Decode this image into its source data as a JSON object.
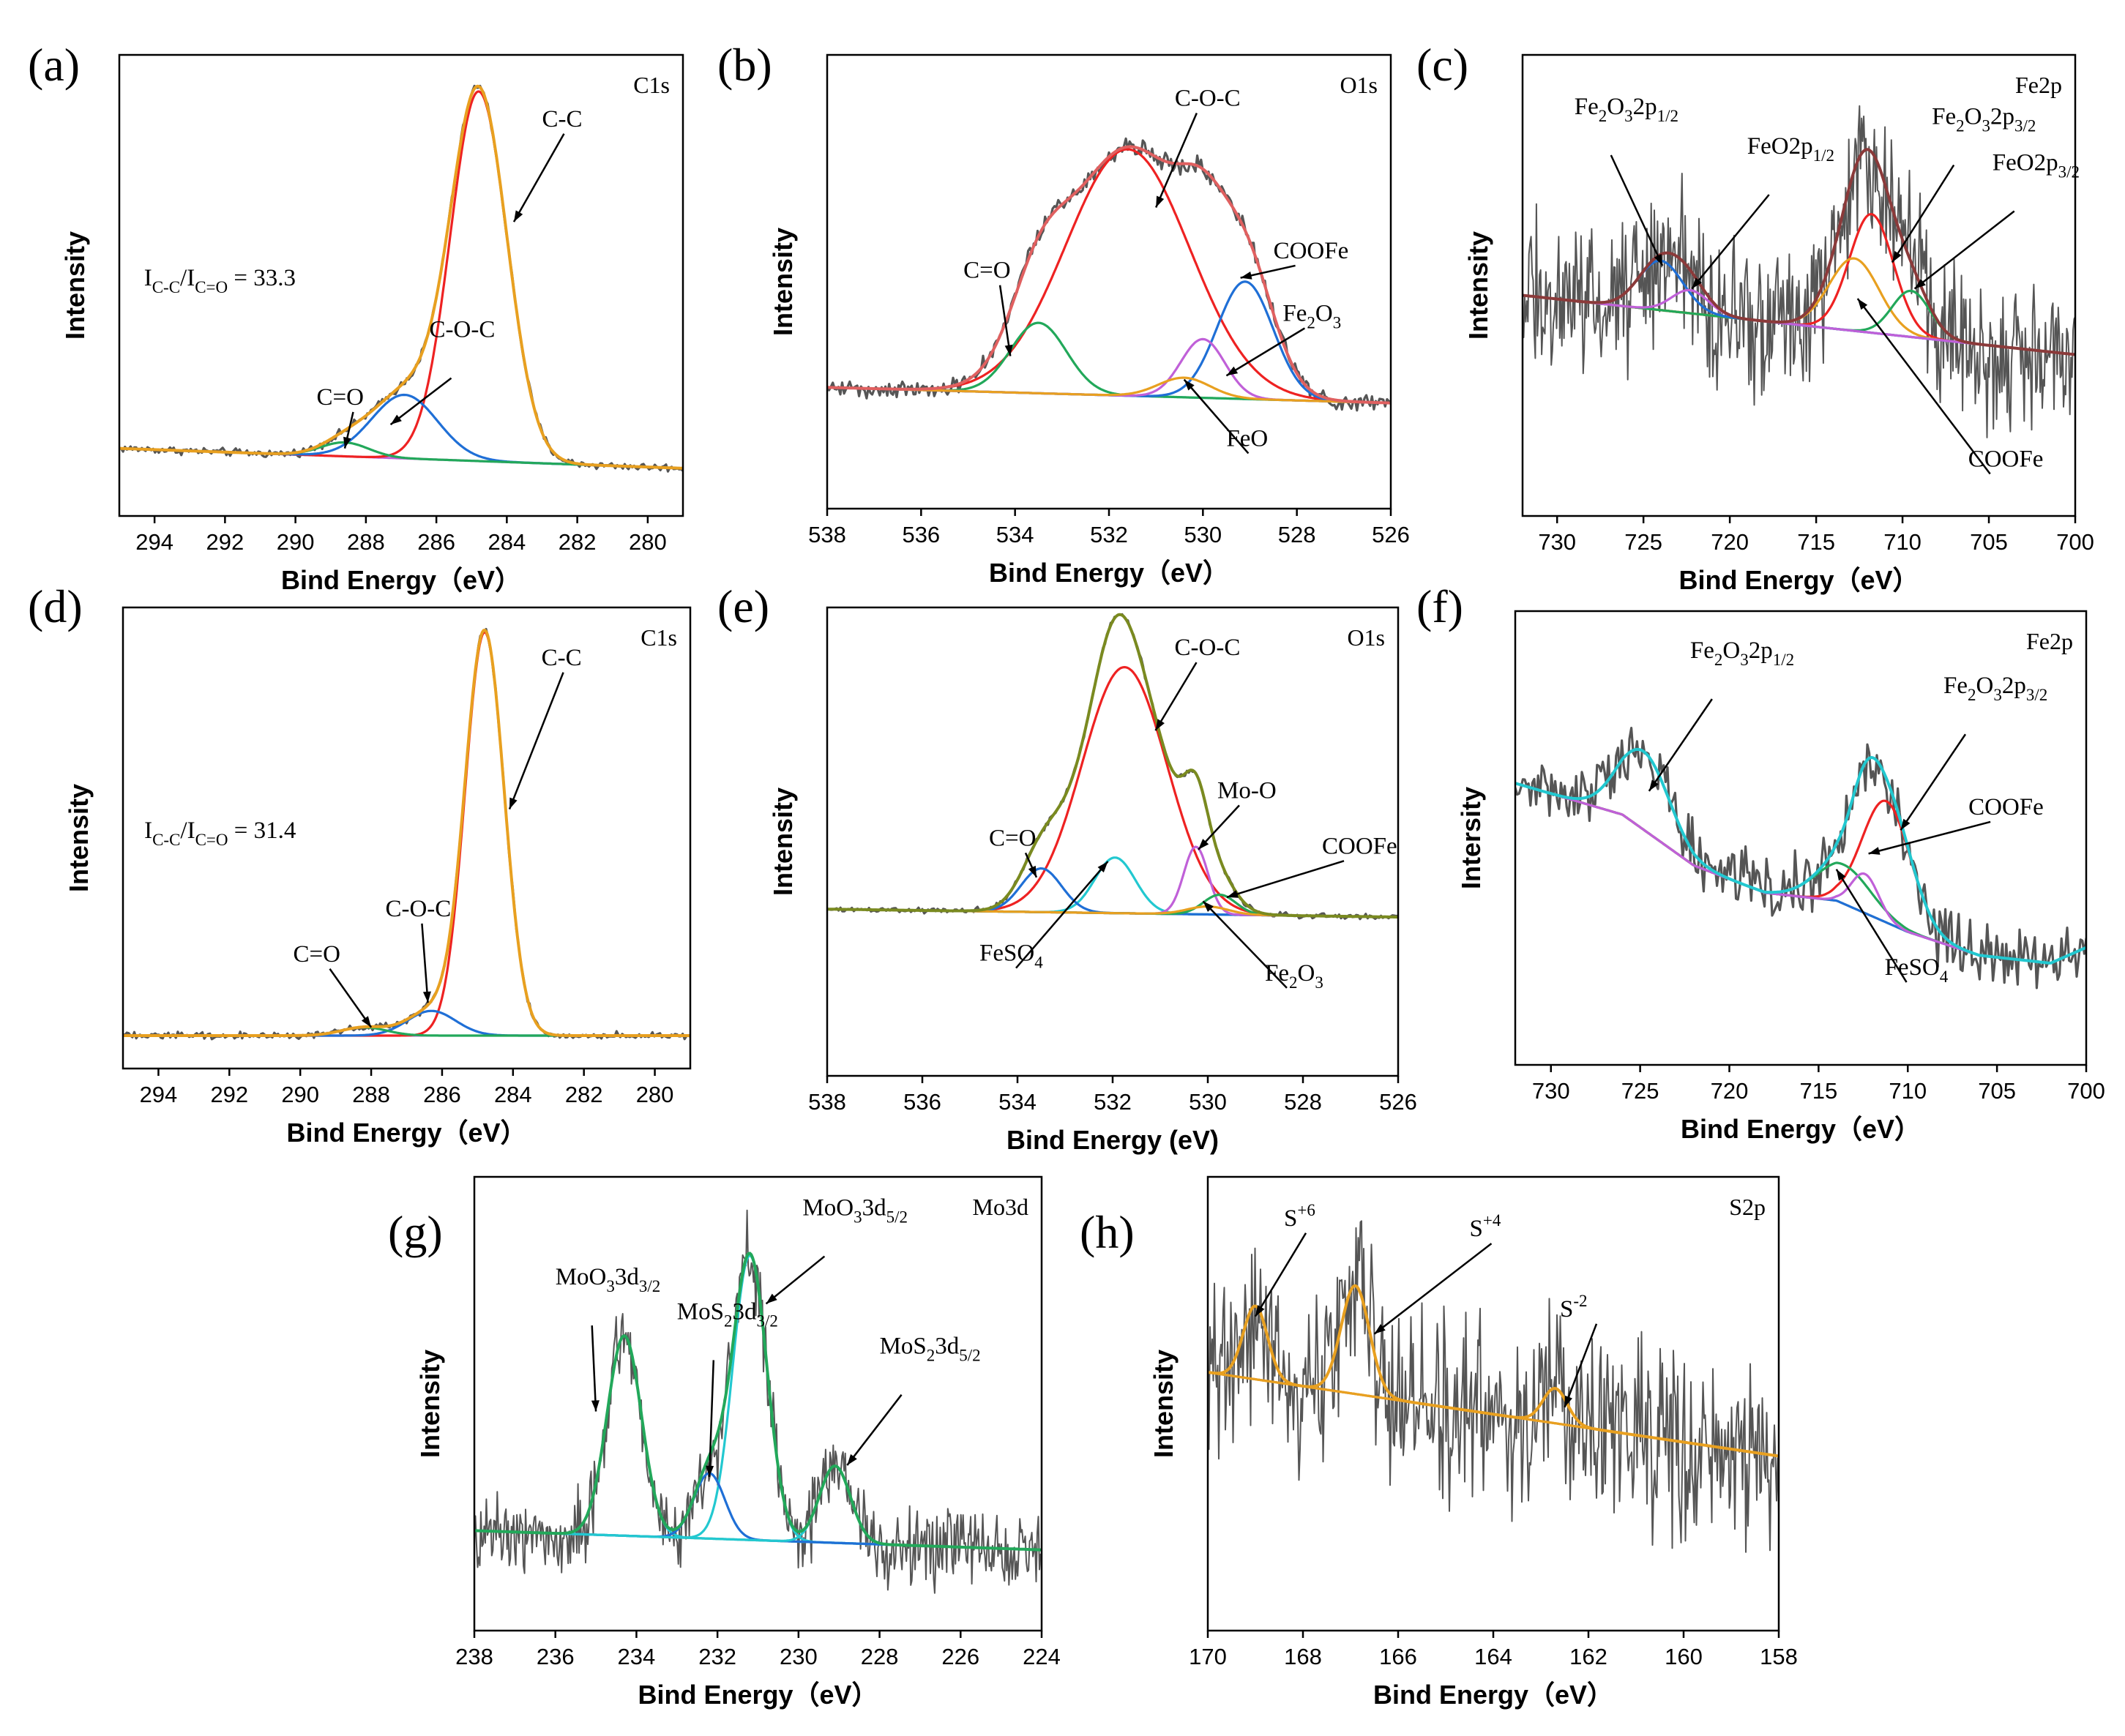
{
  "chart_data": [
    {
      "id": "a",
      "panel_label": "(a)",
      "type": "line",
      "corner_label": "C1s",
      "xlabel": "Bind Energy（eV）",
      "ylabel": "Intensity",
      "xlim": [
        295,
        279
      ],
      "xticks": [
        294,
        292,
        290,
        288,
        286,
        284,
        282,
        280
      ],
      "ylim": [
        -0.12,
        1.04
      ],
      "noise": 0.006,
      "background": {
        "color": "#c060d8",
        "start": 0.05,
        "end": 0.0
      },
      "components": [
        {
          "name": "C-C",
          "color": "#ee2222",
          "center": 284.8,
          "fwhm": 1.9,
          "height": 0.93
        },
        {
          "name": "C-O-C",
          "color": "#1f6fd6",
          "center": 286.9,
          "fwhm": 2.2,
          "height": 0.16
        },
        {
          "name": "C=O",
          "color": "#22a85a",
          "center": 288.6,
          "fwhm": 1.6,
          "height": 0.035
        }
      ],
      "envelope": {
        "color": "#e8a020"
      },
      "annotations": [
        {
          "text": "C-C",
          "label_at": [
            283.0,
            0.86
          ],
          "tip": [
            283.8,
            0.62
          ]
        },
        {
          "text": "C -O-C",
          "label_at": [
            286.2,
            0.33
          ],
          "tip": [
            287.3,
            0.11
          ]
        },
        {
          "text": "C=O",
          "label_at": [
            289.4,
            0.16
          ],
          "tip": [
            288.6,
            0.05
          ]
        }
      ],
      "ratio_text": "I_{C-C}/I_{C=O} = 33.3",
      "ratio_at": [
        294.3,
        0.46
      ]
    },
    {
      "id": "b",
      "panel_label": "(b)",
      "type": "line",
      "corner_label": "O1s",
      "xlabel": "Bind Energy（eV）",
      "ylabel": "Intensity",
      "xlim": [
        538,
        526
      ],
      "xticks": [
        538,
        536,
        534,
        532,
        530,
        528,
        526
      ],
      "ylim": [
        -0.3,
        0.86
      ],
      "noise": 0.014,
      "background": {
        "color": "#22c8d0",
        "start": 0.01,
        "end": -0.03
      },
      "components": [
        {
          "name": "C-O-C",
          "color": "#ee2222",
          "center": 531.6,
          "fwhm": 3.1,
          "height": 0.63
        },
        {
          "name": "C=O",
          "color": "#22a85a",
          "center": 533.5,
          "fwhm": 1.4,
          "height": 0.18
        },
        {
          "name": "COOFe",
          "color": "#1f6fd6",
          "center": 529.1,
          "fwhm": 1.4,
          "height": 0.3
        },
        {
          "name": "Fe2O3",
          "color": "#c060d8",
          "center": 530.0,
          "fwhm": 1.1,
          "height": 0.15
        },
        {
          "name": "FeO",
          "color": "#e8a020",
          "center": 530.4,
          "fwhm": 1.3,
          "height": 0.05
        }
      ],
      "envelope": {
        "color": "#e06060"
      },
      "annotations": [
        {
          "text": "C-O-C",
          "label_at": [
            530.6,
            0.73
          ],
          "tip": [
            531.0,
            0.47
          ]
        },
        {
          "text": "C=O",
          "label_at": [
            535.1,
            0.29
          ],
          "tip": [
            534.1,
            0.09
          ]
        },
        {
          "text": "COOFe",
          "label_at": [
            528.5,
            0.34
          ],
          "tip": [
            529.2,
            0.29
          ]
        },
        {
          "text": "Fe2O3",
          "label_at": [
            528.3,
            0.18
          ],
          "tip": [
            529.5,
            0.04
          ]
        },
        {
          "text": "FeO",
          "label_at": [
            529.5,
            -0.14
          ],
          "tip": [
            530.4,
            0.03
          ]
        }
      ]
    },
    {
      "id": "c",
      "panel_label": "(c)",
      "type": "line",
      "corner_label": "Fe2p",
      "xlabel": "Bind Energy（eV）",
      "ylabel": "Intensity",
      "xlim": [
        732,
        700
      ],
      "xticks": [
        730,
        725,
        720,
        715,
        710,
        705,
        700
      ],
      "ylim": [
        -0.55,
        0.85
      ],
      "noise": 0.14,
      "background": {
        "color": "#22c8d0",
        "start": 0.12,
        "end": -0.06
      },
      "components": [
        {
          "name": "Fe2O3 2p3/2",
          "color": "#ee2222",
          "center": 711.8,
          "fwhm": 3.0,
          "height": 0.36
        },
        {
          "name": "COOFe",
          "color": "#e8a020",
          "center": 712.8,
          "fwhm": 3.4,
          "height": 0.22
        },
        {
          "name": "FeO 2p3/2",
          "color": "#22a85a",
          "center": 709.5,
          "fwhm": 2.6,
          "height": 0.14
        },
        {
          "name": "Fe2O3 2p1/2",
          "color": "#1f6fd6",
          "center": 724.0,
          "fwhm": 3.0,
          "height": 0.15
        },
        {
          "name": "FeO 2p1/2",
          "color": "#c060d8",
          "center": 722.3,
          "fwhm": 2.5,
          "height": 0.07
        }
      ],
      "envelope": {
        "color": "#8b3a3a"
      },
      "annotations": [
        {
          "text": "Fe2O3 2p1/2",
          "label_at": [
            729.0,
            0.67
          ],
          "tip": [
            723.9,
            0.21
          ]
        },
        {
          "text": "FeO 2p1/2",
          "label_at": [
            719.0,
            0.55
          ],
          "tip": [
            722.2,
            0.14
          ]
        },
        {
          "text": "Fe2O3 2p3/2",
          "label_at": [
            708.3,
            0.64
          ],
          "tip": [
            710.6,
            0.22
          ]
        },
        {
          "text": "FeO 2p3/2",
          "label_at": [
            704.8,
            0.5
          ],
          "tip": [
            709.3,
            0.14
          ]
        },
        {
          "text": "COOFe",
          "label_at": [
            706.2,
            -0.4
          ],
          "tip": [
            712.6,
            0.11
          ]
        }
      ]
    },
    {
      "id": "d",
      "panel_label": "(d)",
      "type": "line",
      "corner_label": "C1s",
      "xlabel": "Bind Energy（eV）",
      "ylabel": "Intensity",
      "xlim": [
        295,
        279
      ],
      "xticks": [
        294,
        292,
        290,
        288,
        286,
        284,
        282,
        280
      ],
      "ylim": [
        -0.08,
        1.04
      ],
      "noise": 0.005,
      "background": {
        "color": "#c060d8",
        "start": 0.0,
        "end": 0.0
      },
      "components": [
        {
          "name": "C-C",
          "color": "#ee2222",
          "center": 284.8,
          "fwhm": 1.3,
          "height": 0.98
        },
        {
          "name": "C-O-C",
          "color": "#1f6fd6",
          "center": 286.3,
          "fwhm": 1.6,
          "height": 0.06
        },
        {
          "name": "C=O",
          "color": "#22a85a",
          "center": 288.2,
          "fwhm": 1.5,
          "height": 0.02
        }
      ],
      "envelope": {
        "color": "#e8a020"
      },
      "annotations": [
        {
          "text": "C-C",
          "label_at": [
            283.2,
            0.9
          ],
          "tip": [
            284.1,
            0.55
          ]
        },
        {
          "text": "C-O-C",
          "label_at": [
            287.6,
            0.29
          ],
          "tip": [
            286.4,
            0.08
          ]
        },
        {
          "text": "C=O",
          "label_at": [
            290.2,
            0.18
          ],
          "tip": [
            288.0,
            0.02
          ]
        }
      ],
      "ratio_text": "I_{C-C}/I_{C=O} = 31.4",
      "ratio_at": [
        294.4,
        0.48
      ]
    },
    {
      "id": "e",
      "panel_label": "(e)",
      "type": "line",
      "corner_label": "O1s",
      "xlabel": "Bind Energy (eV)",
      "ylabel": "Intensity",
      "xlim": [
        538,
        526
      ],
      "xticks": [
        538,
        536,
        534,
        532,
        530,
        528,
        526
      ],
      "ylim": [
        -0.42,
        0.76
      ],
      "noise": 0.004,
      "background": {
        "color": "#7a3b2e",
        "start": 0.0,
        "end": -0.02
      },
      "components": [
        {
          "name": "C-O-C",
          "color": "#ee2222",
          "center": 531.75,
          "fwhm": 2.1,
          "height": 0.62
        },
        {
          "name": "FeSO4",
          "color": "#22c8d0",
          "center": 531.95,
          "fwhm": 1.0,
          "height": 0.14
        },
        {
          "name": "C=O",
          "color": "#1f6fd6",
          "center": 533.5,
          "fwhm": 1.0,
          "height": 0.11
        },
        {
          "name": "Mo-O",
          "color": "#c060d8",
          "center": 530.25,
          "fwhm": 0.6,
          "height": 0.17
        },
        {
          "name": "COOFe",
          "color": "#22a85a",
          "center": 529.75,
          "fwhm": 0.8,
          "height": 0.05
        },
        {
          "name": "Fe2O3",
          "color": "#e8a020",
          "center": 530.0,
          "fwhm": 1.0,
          "height": 0.02
        }
      ],
      "envelope": {
        "color": "#7a8a20"
      },
      "annotations": [
        {
          "text": "C-O-C",
          "label_at": [
            530.7,
            0.64
          ],
          "tip": [
            531.1,
            0.45
          ]
        },
        {
          "text": "C=O",
          "label_at": [
            534.6,
            0.16
          ],
          "tip": [
            533.6,
            0.08
          ]
        },
        {
          "text": "Mo-O",
          "label_at": [
            529.8,
            0.28
          ],
          "tip": [
            530.2,
            0.15
          ]
        },
        {
          "text": "COOFe",
          "label_at": [
            527.6,
            0.14
          ],
          "tip": [
            529.6,
            0.03
          ]
        },
        {
          "text": "FeSO4",
          "label_at": [
            534.8,
            -0.13
          ],
          "tip": [
            532.1,
            0.12
          ]
        },
        {
          "text": "Fe2O3",
          "label_at": [
            528.8,
            -0.18
          ],
          "tip": [
            530.1,
            0.02
          ]
        }
      ]
    },
    {
      "id": "f",
      "panel_label": "(f)",
      "type": "line",
      "corner_label": "Fe2p",
      "xlabel": "Bind Energy（eV）",
      "ylabel": "Intersity",
      "xlim": [
        732,
        700
      ],
      "xticks": [
        730,
        725,
        720,
        715,
        710,
        705,
        700
      ],
      "ylim": [
        -0.42,
        0.74
      ],
      "noise": 0.05,
      "background": {
        "color": "#d4a017",
        "points": [
          [
            732,
            0.3
          ],
          [
            726,
            0.22
          ],
          [
            722,
            0.09
          ],
          [
            718,
            0.02
          ],
          [
            714,
            0.0
          ],
          [
            710,
            -0.08
          ],
          [
            706,
            -0.14
          ],
          [
            702,
            -0.16
          ],
          [
            700,
            -0.12
          ]
        ]
      },
      "components": [
        {
          "name": "Fe2O3 2p3/2",
          "color": "#ee2222",
          "center": 711.2,
          "fwhm": 3.2,
          "height": 0.31
        },
        {
          "name": "Fe2O3 2p1/2",
          "color": "#1f6fd6",
          "center": 724.8,
          "fwhm": 3.4,
          "height": 0.2
        },
        {
          "name": "FeSO4",
          "color": "#22a85a",
          "center": 713.6,
          "fwhm": 3.6,
          "height": 0.1
        },
        {
          "name": "COOFe",
          "color": "#c060d8",
          "center": 712.4,
          "fwhm": 1.8,
          "height": 0.1
        }
      ],
      "envelope": {
        "color": "#22c8d0"
      },
      "annotations": [
        {
          "text": "Fe2O3 2p1/2",
          "label_at": [
            722.2,
            0.62
          ],
          "tip": [
            724.5,
            0.28
          ]
        },
        {
          "text": "Fe2O3 2p3/2",
          "label_at": [
            708.0,
            0.53
          ],
          "tip": [
            710.4,
            0.18
          ]
        },
        {
          "text": "COOFe",
          "label_at": [
            706.6,
            0.22
          ],
          "tip": [
            712.2,
            0.12
          ]
        },
        {
          "text": "FeSO4",
          "label_at": [
            711.3,
            -0.19
          ],
          "tip": [
            714.0,
            0.08
          ]
        }
      ]
    },
    {
      "id": "g",
      "panel_label": "(g)",
      "type": "line",
      "corner_label": "Mo3d",
      "xlabel": "Bind Energy（eV）",
      "ylabel": "Intensity",
      "xlim": [
        238,
        224
      ],
      "xticks": [
        238,
        236,
        234,
        232,
        230,
        228,
        226,
        224
      ],
      "ylim": [
        -0.26,
        0.92
      ],
      "noise": 0.06,
      "background": {
        "color": "#d4a017",
        "start": 0.0,
        "end": -0.05
      },
      "components": [
        {
          "name": "MoO3 3d5/2",
          "color": "#22c8d0",
          "center": 231.2,
          "fwhm": 1.0,
          "height": 0.74
        },
        {
          "name": "MoO3 3d3/2",
          "color": "#22c8d0",
          "center": 234.3,
          "fwhm": 1.0,
          "height": 0.52
        },
        {
          "name": "MoS2 3d3/2",
          "color": "#1f6fd6",
          "center": 232.2,
          "fwhm": 0.9,
          "height": 0.17
        },
        {
          "name": "MoS2 3d5/2",
          "color": "#22c8d0",
          "center": 229.1,
          "fwhm": 0.9,
          "height": 0.2
        }
      ],
      "envelope": {
        "color": "#22a85a"
      },
      "annotations": [
        {
          "text": "MoO3 3d5/2",
          "label_at": [
            229.9,
            0.82
          ],
          "tip": [
            230.8,
            0.59
          ]
        },
        {
          "text": "MoO3 3d3/2",
          "label_at": [
            236.0,
            0.64
          ],
          "tip": [
            235.0,
            0.31
          ]
        },
        {
          "text": "MoS2 3d3/2",
          "label_at": [
            233.0,
            0.55
          ],
          "tip": [
            232.2,
            0.14
          ]
        },
        {
          "text": "MoS2 3d5/2",
          "label_at": [
            228.0,
            0.46
          ],
          "tip": [
            228.8,
            0.17
          ]
        }
      ]
    },
    {
      "id": "h",
      "panel_label": "(h)",
      "type": "line",
      "corner_label": "S2p",
      "xlabel": "Bind Energy（eV）",
      "ylabel": "Intensity",
      "xlim": [
        170,
        158
      ],
      "xticks": [
        170,
        168,
        166,
        164,
        162,
        160,
        158
      ],
      "ylim": [
        -0.5,
        0.8
      ],
      "noise": 0.16,
      "background": {
        "color": "#c060d8",
        "start": 0.24,
        "end": 0.0
      },
      "components": [
        {
          "name": "S+6",
          "color": "#e8a020",
          "center": 169.0,
          "fwhm": 0.6,
          "height": 0.21
        },
        {
          "name": "S+4",
          "color": "#e8a020",
          "center": 166.9,
          "fwhm": 0.7,
          "height": 0.31
        },
        {
          "name": "S-2",
          "color": "#e8a020",
          "center": 162.7,
          "fwhm": 0.6,
          "height": 0.1
        }
      ],
      "envelope": {
        "color": "#e8a020"
      },
      "annotations": [
        {
          "text": "S+6",
          "label_at": [
            168.4,
            0.66
          ],
          "tip": [
            169.0,
            0.4
          ]
        },
        {
          "text": "S+4",
          "label_at": [
            164.5,
            0.63
          ],
          "tip": [
            166.5,
            0.35
          ]
        },
        {
          "text": "S-2",
          "label_at": [
            162.6,
            0.4
          ],
          "tip": [
            162.5,
            0.14
          ]
        }
      ]
    }
  ]
}
